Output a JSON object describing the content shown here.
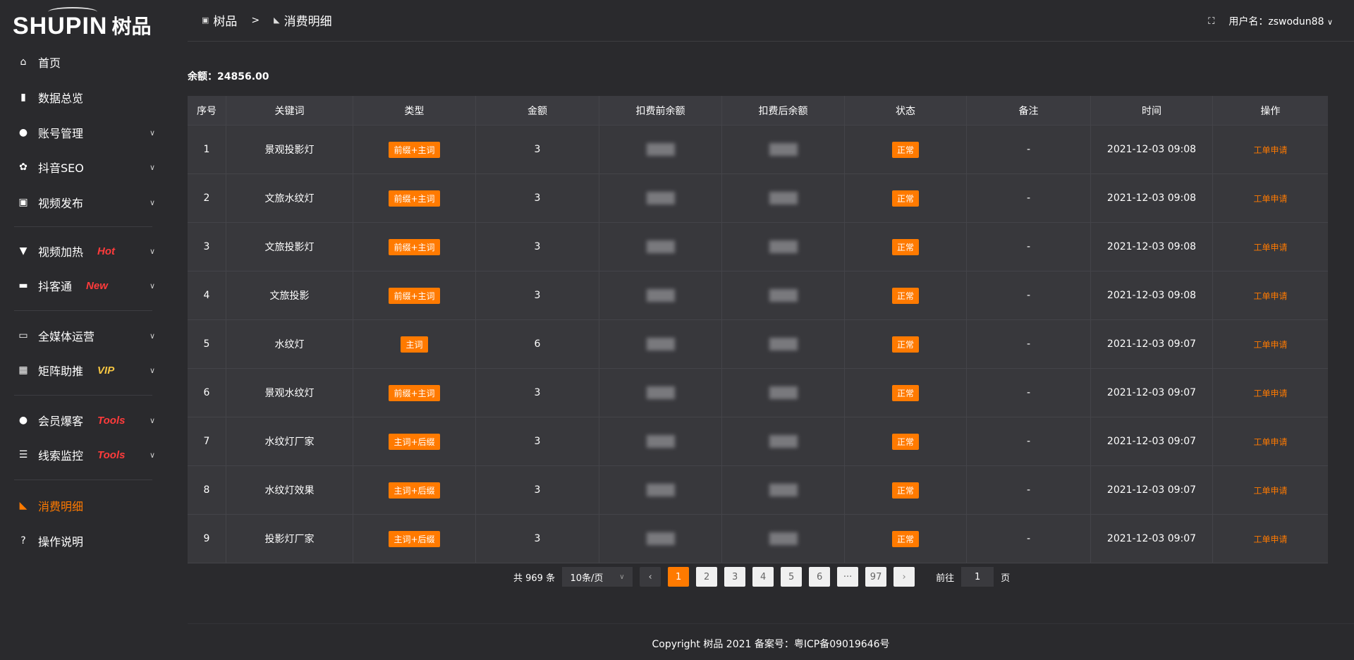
{
  "brand": {
    "logo_en": "SHUPIN",
    "logo_cn": "树品"
  },
  "colors": {
    "accent": "#ff7a00",
    "hot": "#ff3b3b",
    "vip": "#f5c542",
    "background": "#2a2a2d",
    "table": "#38383c"
  },
  "sidebar": {
    "items": [
      {
        "label": "首页",
        "icon": "home-icon",
        "glyph": "⌂"
      },
      {
        "label": "数据总览",
        "icon": "bar-chart-icon",
        "glyph": "▮"
      },
      {
        "label": "账号管理",
        "icon": "user-icon",
        "glyph": "●",
        "chevron": true
      },
      {
        "label": "抖音SEO",
        "icon": "gear-icon",
        "glyph": "✿",
        "chevron": true
      },
      {
        "label": "视频发布",
        "icon": "video-icon",
        "glyph": "▣",
        "chevron": true
      },
      {
        "label": "视频加热",
        "icon": "brush-icon",
        "glyph": "▼",
        "tag": "Hot",
        "chevron": true
      },
      {
        "label": "抖客通",
        "icon": "chat-icon",
        "glyph": "▬",
        "tag": "New",
        "chevron": true
      },
      {
        "label": "全媒体运营",
        "icon": "monitor-icon",
        "glyph": "▭",
        "chevron": true
      },
      {
        "label": "矩阵助推",
        "icon": "grid-icon",
        "glyph": "▦",
        "tag": "VIP",
        "chevron": true
      },
      {
        "label": "会员爆客",
        "icon": "user-icon",
        "glyph": "●",
        "tag": "Tools",
        "chevron": true
      },
      {
        "label": "线索监控",
        "icon": "sliders-icon",
        "glyph": "☰",
        "tag": "Tools",
        "chevron": true
      },
      {
        "label": "消费明细",
        "icon": "wallet-icon",
        "glyph": "◣",
        "active": true
      },
      {
        "label": "操作说明",
        "icon": "help-icon",
        "glyph": "?"
      }
    ]
  },
  "header": {
    "breadcrumb": [
      "树品",
      "消费明细"
    ],
    "breadcrumb_sep": ">",
    "user_label": "用户名：zswodun88"
  },
  "balance": "余额：24856.00",
  "table": {
    "columns": [
      "序号",
      "关键词",
      "类型",
      "金额",
      "扣费前余额",
      "扣费后余额",
      "状态",
      "备注",
      "时间",
      "操作"
    ],
    "rows": [
      [
        "1",
        "景观投影灯",
        "前缀+主词",
        "3",
        "",
        "",
        "正常",
        "-",
        "2021-12-03 09:08",
        "工单申请"
      ],
      [
        "2",
        "文旅水纹灯",
        "前缀+主词",
        "3",
        "",
        "",
        "正常",
        "-",
        "2021-12-03 09:08",
        "工单申请"
      ],
      [
        "3",
        "文旅投影灯",
        "前缀+主词",
        "3",
        "",
        "",
        "正常",
        "-",
        "2021-12-03 09:08",
        "工单申请"
      ],
      [
        "4",
        "文旅投影",
        "前缀+主词",
        "3",
        "",
        "",
        "正常",
        "-",
        "2021-12-03 09:08",
        "工单申请"
      ],
      [
        "5",
        "水纹灯",
        "主词",
        "6",
        "",
        "",
        "正常",
        "-",
        "2021-12-03 09:07",
        "工单申请"
      ],
      [
        "6",
        "景观水纹灯",
        "前缀+主词",
        "3",
        "",
        "",
        "正常",
        "-",
        "2021-12-03 09:07",
        "工单申请"
      ],
      [
        "7",
        "水纹灯厂家",
        "主词+后缀",
        "3",
        "",
        "",
        "正常",
        "-",
        "2021-12-03 09:07",
        "工单申请"
      ],
      [
        "8",
        "水纹灯效果",
        "主词+后缀",
        "3",
        "",
        "",
        "正常",
        "-",
        "2021-12-03 09:07",
        "工单申请"
      ],
      [
        "9",
        "投影灯厂家",
        "主词+后缀",
        "3",
        "",
        "",
        "正常",
        "-",
        "2021-12-03 09:07",
        "工单申请"
      ]
    ]
  },
  "pagination": {
    "total": "共 969 条",
    "page_size": "10条/页",
    "pages": [
      "1",
      "2",
      "3",
      "4",
      "5",
      "6",
      "···",
      "97"
    ],
    "current": "1",
    "goto_label": "前往",
    "goto_value": "1",
    "goto_suffix": "页"
  },
  "footer": "Copyright 树品 2021 备案号：粤ICP备09019646号"
}
